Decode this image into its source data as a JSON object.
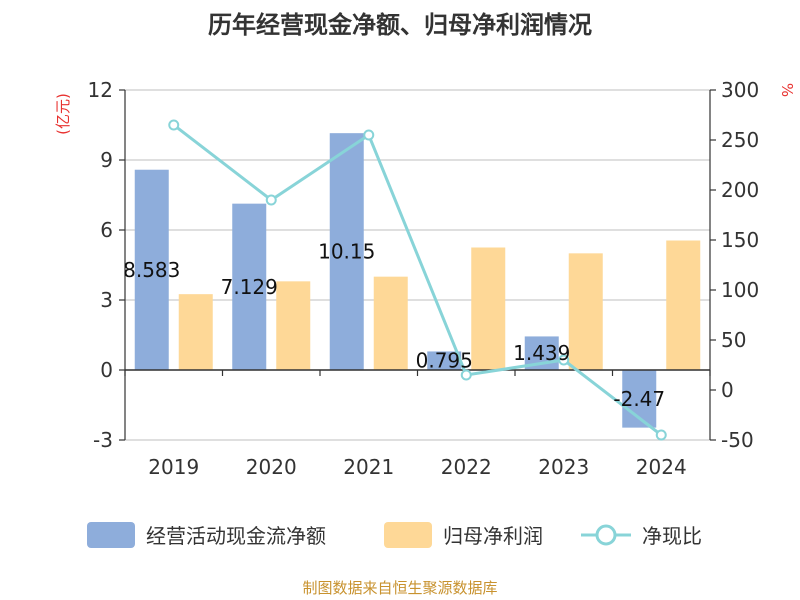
{
  "chart_data": {
    "type": "bar",
    "title": "历年经营现金净额、归母净利润情况",
    "categories": [
      "2019",
      "2020",
      "2021",
      "2022",
      "2023",
      "2024"
    ],
    "y_left": {
      "unit": "(亿元)",
      "range": [
        -3,
        12
      ],
      "ticks": [
        "12",
        "9",
        "6",
        "3",
        "0",
        "-3"
      ]
    },
    "y_right": {
      "unit": "%",
      "range": [
        -50,
        300
      ],
      "ticks": [
        "300",
        "250",
        "200",
        "150",
        "100",
        "50",
        "0",
        "-50"
      ]
    },
    "series": [
      {
        "name": "经营活动现金流净额",
        "type": "bar",
        "axis": "left",
        "color": "#8eaddb",
        "values": [
          8.583,
          7.129,
          10.15,
          0.795,
          1.439,
          -2.47
        ],
        "labels": [
          "8.583",
          "7.129",
          "10.15",
          "0.795",
          "1.439",
          "-2.47"
        ]
      },
      {
        "name": "归母净利润",
        "type": "bar",
        "axis": "left",
        "color": "#fed897",
        "values": [
          3.25,
          3.8,
          4.0,
          5.25,
          5.0,
          5.55
        ]
      },
      {
        "name": "净现比",
        "type": "line",
        "axis": "right",
        "color": "#88d4d8",
        "values": [
          265,
          190,
          255,
          15,
          30,
          -45
        ]
      }
    ],
    "grid": true,
    "legend": "bottom"
  },
  "footer": {
    "source": "制图数据来自恒生聚源数据库"
  }
}
